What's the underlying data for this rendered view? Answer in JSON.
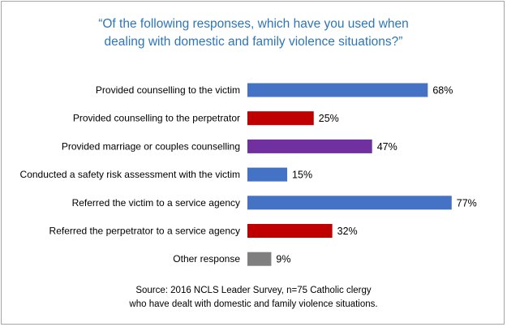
{
  "chart_data": {
    "type": "bar",
    "orientation": "horizontal",
    "title_lines": [
      "“Of the following responses, which have you used when",
      "dealing with domestic and family violence situations?”"
    ],
    "categories": [
      "Provided counselling to the victim",
      "Provided counselling to the perpetrator",
      "Provided marriage or couples counselling",
      "Conducted a safety risk assessment with the victim",
      "Referred the victim to a service agency",
      "Referred the perpetrator to a service agency",
      "Other response"
    ],
    "values": [
      68,
      25,
      47,
      15,
      77,
      32,
      9
    ],
    "value_labels": [
      "68%",
      "25%",
      "47%",
      "15%",
      "77%",
      "32%",
      "9%"
    ],
    "bar_colors": [
      "#4472c4",
      "#c00000",
      "#7030a0",
      "#4472c4",
      "#4472c4",
      "#c00000",
      "#7f7f7f"
    ],
    "xlim": [
      0,
      100
    ],
    "grid": false,
    "legend": "none",
    "source_lines": [
      "Source: 2016 NCLS Leader Survey, n=75 Catholic clergy",
      "who have dealt with domestic and family violence situations."
    ]
  }
}
